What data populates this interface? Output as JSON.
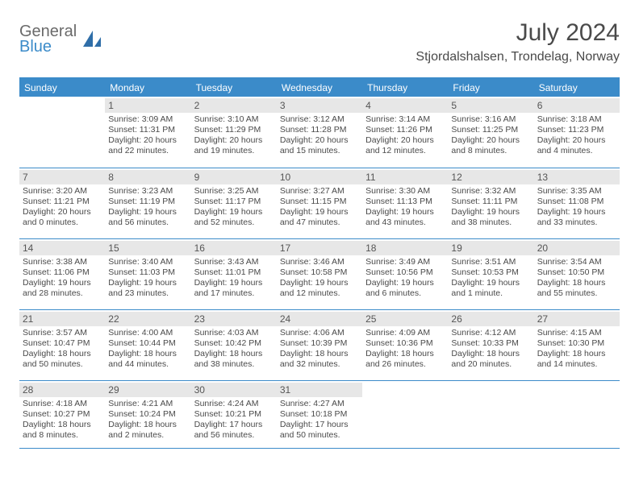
{
  "logo": {
    "word1": "General",
    "word2": "Blue",
    "mark_color": "#2f6ea8",
    "text_gray": "#6a6a6a"
  },
  "title": "July 2024",
  "subtitle": "Stjordalshalsen, Trondelag, Norway",
  "colors": {
    "accent": "#3b8bc9",
    "daynum_bg": "#e7e7e7",
    "text": "#4a4a4a",
    "white": "#ffffff"
  },
  "day_headers": [
    "Sunday",
    "Monday",
    "Tuesday",
    "Wednesday",
    "Thursday",
    "Friday",
    "Saturday"
  ],
  "weeks": [
    [
      null,
      {
        "n": "1",
        "sr": "Sunrise: 3:09 AM",
        "ss": "Sunset: 11:31 PM",
        "d1": "Daylight: 20 hours",
        "d2": "and 22 minutes."
      },
      {
        "n": "2",
        "sr": "Sunrise: 3:10 AM",
        "ss": "Sunset: 11:29 PM",
        "d1": "Daylight: 20 hours",
        "d2": "and 19 minutes."
      },
      {
        "n": "3",
        "sr": "Sunrise: 3:12 AM",
        "ss": "Sunset: 11:28 PM",
        "d1": "Daylight: 20 hours",
        "d2": "and 15 minutes."
      },
      {
        "n": "4",
        "sr": "Sunrise: 3:14 AM",
        "ss": "Sunset: 11:26 PM",
        "d1": "Daylight: 20 hours",
        "d2": "and 12 minutes."
      },
      {
        "n": "5",
        "sr": "Sunrise: 3:16 AM",
        "ss": "Sunset: 11:25 PM",
        "d1": "Daylight: 20 hours",
        "d2": "and 8 minutes."
      },
      {
        "n": "6",
        "sr": "Sunrise: 3:18 AM",
        "ss": "Sunset: 11:23 PM",
        "d1": "Daylight: 20 hours",
        "d2": "and 4 minutes."
      }
    ],
    [
      {
        "n": "7",
        "sr": "Sunrise: 3:20 AM",
        "ss": "Sunset: 11:21 PM",
        "d1": "Daylight: 20 hours",
        "d2": "and 0 minutes."
      },
      {
        "n": "8",
        "sr": "Sunrise: 3:23 AM",
        "ss": "Sunset: 11:19 PM",
        "d1": "Daylight: 19 hours",
        "d2": "and 56 minutes."
      },
      {
        "n": "9",
        "sr": "Sunrise: 3:25 AM",
        "ss": "Sunset: 11:17 PM",
        "d1": "Daylight: 19 hours",
        "d2": "and 52 minutes."
      },
      {
        "n": "10",
        "sr": "Sunrise: 3:27 AM",
        "ss": "Sunset: 11:15 PM",
        "d1": "Daylight: 19 hours",
        "d2": "and 47 minutes."
      },
      {
        "n": "11",
        "sr": "Sunrise: 3:30 AM",
        "ss": "Sunset: 11:13 PM",
        "d1": "Daylight: 19 hours",
        "d2": "and 43 minutes."
      },
      {
        "n": "12",
        "sr": "Sunrise: 3:32 AM",
        "ss": "Sunset: 11:11 PM",
        "d1": "Daylight: 19 hours",
        "d2": "and 38 minutes."
      },
      {
        "n": "13",
        "sr": "Sunrise: 3:35 AM",
        "ss": "Sunset: 11:08 PM",
        "d1": "Daylight: 19 hours",
        "d2": "and 33 minutes."
      }
    ],
    [
      {
        "n": "14",
        "sr": "Sunrise: 3:38 AM",
        "ss": "Sunset: 11:06 PM",
        "d1": "Daylight: 19 hours",
        "d2": "and 28 minutes."
      },
      {
        "n": "15",
        "sr": "Sunrise: 3:40 AM",
        "ss": "Sunset: 11:03 PM",
        "d1": "Daylight: 19 hours",
        "d2": "and 23 minutes."
      },
      {
        "n": "16",
        "sr": "Sunrise: 3:43 AM",
        "ss": "Sunset: 11:01 PM",
        "d1": "Daylight: 19 hours",
        "d2": "and 17 minutes."
      },
      {
        "n": "17",
        "sr": "Sunrise: 3:46 AM",
        "ss": "Sunset: 10:58 PM",
        "d1": "Daylight: 19 hours",
        "d2": "and 12 minutes."
      },
      {
        "n": "18",
        "sr": "Sunrise: 3:49 AM",
        "ss": "Sunset: 10:56 PM",
        "d1": "Daylight: 19 hours",
        "d2": "and 6 minutes."
      },
      {
        "n": "19",
        "sr": "Sunrise: 3:51 AM",
        "ss": "Sunset: 10:53 PM",
        "d1": "Daylight: 19 hours",
        "d2": "and 1 minute."
      },
      {
        "n": "20",
        "sr": "Sunrise: 3:54 AM",
        "ss": "Sunset: 10:50 PM",
        "d1": "Daylight: 18 hours",
        "d2": "and 55 minutes."
      }
    ],
    [
      {
        "n": "21",
        "sr": "Sunrise: 3:57 AM",
        "ss": "Sunset: 10:47 PM",
        "d1": "Daylight: 18 hours",
        "d2": "and 50 minutes."
      },
      {
        "n": "22",
        "sr": "Sunrise: 4:00 AM",
        "ss": "Sunset: 10:44 PM",
        "d1": "Daylight: 18 hours",
        "d2": "and 44 minutes."
      },
      {
        "n": "23",
        "sr": "Sunrise: 4:03 AM",
        "ss": "Sunset: 10:42 PM",
        "d1": "Daylight: 18 hours",
        "d2": "and 38 minutes."
      },
      {
        "n": "24",
        "sr": "Sunrise: 4:06 AM",
        "ss": "Sunset: 10:39 PM",
        "d1": "Daylight: 18 hours",
        "d2": "and 32 minutes."
      },
      {
        "n": "25",
        "sr": "Sunrise: 4:09 AM",
        "ss": "Sunset: 10:36 PM",
        "d1": "Daylight: 18 hours",
        "d2": "and 26 minutes."
      },
      {
        "n": "26",
        "sr": "Sunrise: 4:12 AM",
        "ss": "Sunset: 10:33 PM",
        "d1": "Daylight: 18 hours",
        "d2": "and 20 minutes."
      },
      {
        "n": "27",
        "sr": "Sunrise: 4:15 AM",
        "ss": "Sunset: 10:30 PM",
        "d1": "Daylight: 18 hours",
        "d2": "and 14 minutes."
      }
    ],
    [
      {
        "n": "28",
        "sr": "Sunrise: 4:18 AM",
        "ss": "Sunset: 10:27 PM",
        "d1": "Daylight: 18 hours",
        "d2": "and 8 minutes."
      },
      {
        "n": "29",
        "sr": "Sunrise: 4:21 AM",
        "ss": "Sunset: 10:24 PM",
        "d1": "Daylight: 18 hours",
        "d2": "and 2 minutes."
      },
      {
        "n": "30",
        "sr": "Sunrise: 4:24 AM",
        "ss": "Sunset: 10:21 PM",
        "d1": "Daylight: 17 hours",
        "d2": "and 56 minutes."
      },
      {
        "n": "31",
        "sr": "Sunrise: 4:27 AM",
        "ss": "Sunset: 10:18 PM",
        "d1": "Daylight: 17 hours",
        "d2": "and 50 minutes."
      },
      null,
      null,
      null
    ]
  ]
}
